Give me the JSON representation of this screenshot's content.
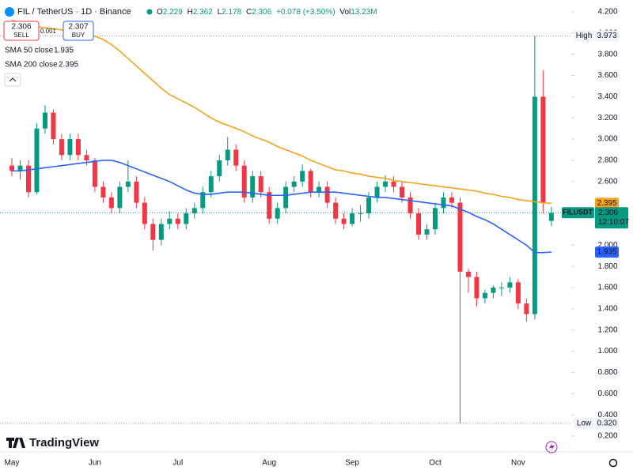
{
  "chart_data": {
    "type": "candlestick",
    "title": "FIL / TetherUS · 1D · Binance",
    "categories": [
      "May",
      null,
      null,
      null,
      null,
      null,
      null,
      null,
      null,
      null,
      "Jun",
      null,
      null,
      null,
      null,
      null,
      null,
      null,
      null,
      null,
      "Jul",
      null,
      null,
      null,
      null,
      null,
      null,
      null,
      null,
      null,
      null,
      "Aug",
      null,
      null,
      null,
      null,
      null,
      null,
      null,
      null,
      null,
      "Sep",
      null,
      null,
      null,
      null,
      null,
      null,
      null,
      null,
      null,
      "Oct",
      null,
      null,
      null,
      null,
      null,
      null,
      null,
      null,
      null,
      "Nov",
      null,
      null,
      null,
      null
    ],
    "open": [
      2.75,
      2.7,
      2.75,
      2.5,
      3.1,
      3.25,
      3.0,
      2.85,
      3.0,
      2.85,
      2.8,
      2.55,
      2.45,
      2.35,
      2.55,
      2.6,
      2.4,
      2.2,
      2.05,
      2.2,
      2.25,
      2.2,
      2.3,
      2.35,
      2.5,
      2.65,
      2.8,
      2.9,
      2.75,
      2.45,
      2.65,
      2.5,
      2.25,
      2.35,
      2.55,
      2.6,
      2.7,
      2.5,
      2.55,
      2.4,
      2.25,
      2.2,
      2.3,
      2.3,
      2.45,
      2.55,
      2.6,
      2.55,
      2.45,
      2.3,
      2.1,
      2.15,
      2.35,
      2.45,
      2.4,
      1.75,
      1.7,
      1.5,
      1.55,
      1.6,
      1.6,
      1.65,
      1.45,
      1.35,
      3.4,
      2.229
    ],
    "high": [
      2.82,
      2.8,
      2.8,
      3.15,
      3.32,
      3.28,
      3.05,
      3.05,
      3.05,
      2.9,
      2.82,
      2.6,
      2.5,
      2.6,
      2.8,
      2.65,
      2.45,
      2.25,
      2.25,
      2.32,
      2.3,
      2.35,
      2.4,
      2.55,
      2.7,
      2.85,
      3.02,
      2.95,
      2.8,
      2.7,
      2.7,
      2.55,
      2.4,
      2.6,
      2.65,
      2.76,
      2.72,
      2.6,
      2.6,
      2.45,
      2.3,
      2.35,
      2.38,
      2.5,
      2.6,
      2.66,
      2.65,
      2.6,
      2.5,
      2.35,
      2.2,
      2.4,
      2.5,
      2.5,
      2.45,
      1.78,
      1.75,
      1.58,
      1.62,
      1.65,
      1.7,
      1.68,
      1.5,
      3.973,
      3.65,
      2.362
    ],
    "low": [
      2.65,
      2.62,
      2.45,
      2.48,
      3.05,
      2.95,
      2.8,
      2.8,
      2.8,
      2.75,
      2.5,
      2.4,
      2.3,
      2.3,
      2.5,
      2.35,
      2.15,
      1.95,
      2.0,
      2.15,
      2.15,
      2.15,
      2.25,
      2.3,
      2.45,
      2.6,
      2.75,
      2.7,
      2.4,
      2.4,
      2.45,
      2.2,
      2.2,
      2.3,
      2.5,
      2.55,
      2.45,
      2.45,
      2.35,
      2.2,
      2.15,
      2.18,
      2.22,
      2.25,
      2.4,
      2.5,
      2.5,
      2.4,
      2.25,
      2.05,
      2.05,
      2.1,
      2.3,
      2.35,
      0.32,
      1.55,
      1.42,
      1.45,
      1.5,
      1.52,
      1.55,
      1.4,
      1.28,
      1.3,
      2.3,
      2.178
    ],
    "close": [
      2.7,
      2.75,
      2.5,
      3.1,
      3.25,
      3.0,
      2.85,
      3.0,
      2.85,
      2.8,
      2.55,
      2.45,
      2.35,
      2.55,
      2.6,
      2.4,
      2.2,
      2.05,
      2.2,
      2.25,
      2.2,
      2.3,
      2.35,
      2.5,
      2.65,
      2.8,
      2.9,
      2.75,
      2.45,
      2.65,
      2.5,
      2.25,
      2.35,
      2.55,
      2.6,
      2.7,
      2.5,
      2.55,
      2.4,
      2.25,
      2.2,
      2.3,
      2.3,
      2.45,
      2.55,
      2.6,
      2.55,
      2.45,
      2.3,
      2.1,
      2.15,
      2.35,
      2.45,
      2.4,
      1.75,
      1.7,
      1.5,
      1.55,
      1.6,
      1.6,
      1.65,
      1.45,
      1.35,
      3.4,
      2.4,
      2.306
    ],
    "up_color": "#089981",
    "down_color": "#f23645",
    "series": [
      {
        "name": "SMA 50 close",
        "color": "#2962ff",
        "values": [
          2.7,
          2.7,
          2.71,
          2.72,
          2.73,
          2.74,
          2.75,
          2.76,
          2.77,
          2.78,
          2.79,
          2.8,
          2.8,
          2.78,
          2.75,
          2.72,
          2.69,
          2.66,
          2.63,
          2.6,
          2.56,
          2.52,
          2.49,
          2.48,
          2.48,
          2.49,
          2.5,
          2.5,
          2.5,
          2.49,
          2.48,
          2.47,
          2.47,
          2.47,
          2.48,
          2.49,
          2.5,
          2.5,
          2.5,
          2.5,
          2.49,
          2.48,
          2.47,
          2.46,
          2.45,
          2.45,
          2.44,
          2.43,
          2.42,
          2.41,
          2.4,
          2.39,
          2.38,
          2.37,
          2.34,
          2.31,
          2.27,
          2.24,
          2.2,
          2.15,
          2.1,
          2.05,
          2.0,
          1.93,
          1.93,
          1.935
        ]
      },
      {
        "name": "SMA 200 close",
        "color": "#f7a21b",
        "values": [
          4.12,
          4.1,
          4.08,
          4.06,
          4.05,
          4.04,
          4.03,
          4.02,
          4.01,
          4.0,
          3.97,
          3.94,
          3.89,
          3.83,
          3.76,
          3.69,
          3.62,
          3.55,
          3.48,
          3.42,
          3.38,
          3.34,
          3.3,
          3.25,
          3.2,
          3.16,
          3.13,
          3.1,
          3.07,
          3.03,
          3.0,
          2.97,
          2.93,
          2.9,
          2.87,
          2.84,
          2.8,
          2.77,
          2.74,
          2.71,
          2.7,
          2.68,
          2.67,
          2.65,
          2.64,
          2.63,
          2.61,
          2.6,
          2.59,
          2.58,
          2.57,
          2.56,
          2.55,
          2.54,
          2.53,
          2.52,
          2.51,
          2.49,
          2.48,
          2.46,
          2.45,
          2.43,
          2.42,
          2.41,
          2.4,
          2.395
        ]
      }
    ],
    "ylim": [
      0.2,
      4.2
    ],
    "yticks": [
      {
        "value": 4.2,
        "label": "4.200"
      },
      {
        "value": 4.0,
        "label": "4.000"
      },
      {
        "value": 3.8,
        "label": "3.800"
      },
      {
        "value": 3.6,
        "label": "3.600"
      },
      {
        "value": 3.4,
        "label": "3.400"
      },
      {
        "value": 3.2,
        "label": "3.200"
      },
      {
        "value": 3.0,
        "label": "3.000"
      },
      {
        "value": 2.8,
        "label": "2.800"
      },
      {
        "value": 2.6,
        "label": "2.600"
      },
      {
        "value": 2.0,
        "label": "2.000"
      },
      {
        "value": 1.8,
        "label": "1.800"
      },
      {
        "value": 1.6,
        "label": "1.600"
      },
      {
        "value": 1.4,
        "label": "1.400"
      },
      {
        "value": 1.2,
        "label": "1.200"
      },
      {
        "value": 1.0,
        "label": "1.000"
      },
      {
        "value": 0.8,
        "label": "0.800"
      },
      {
        "value": 0.6,
        "label": "0.600"
      },
      {
        "value": 0.4,
        "label": "0.400"
      },
      {
        "value": 0.2,
        "label": "0.200"
      }
    ],
    "header": {
      "o": "O",
      "h": "H",
      "l": "L",
      "c": "C",
      "change": "+0.078 (+3.50%)",
      "vol": "Vol",
      "volume": "13.23M"
    },
    "trade": {
      "sell": "SELL",
      "spread": 0.001,
      "buy_price": 2.307,
      "buy": "BUY"
    },
    "markers": {
      "high_text": "High",
      "low_text": "Low",
      "low_label": "0.320"
    },
    "symbol": "FILUSDT",
    "countdown": "12:10:07",
    "brand": "TradingView"
  }
}
